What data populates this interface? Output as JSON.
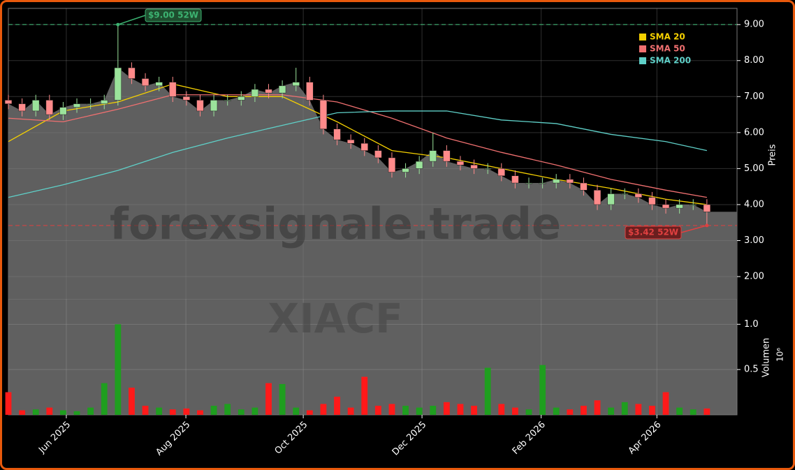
{
  "chart_data": {
    "type": "candlestick",
    "watermark": "forexsignale.trade",
    "ticker_watermark": "XIACF",
    "y_label": "Preis",
    "volume_label": "Volumen",
    "volume_offset_label": "10⁶",
    "xlim": [
      0,
      53.2
    ],
    "xticks": [
      {
        "value": 4.23,
        "label": "Jun 2025"
      },
      {
        "value": 12.96,
        "label": "Aug 2025"
      },
      {
        "value": 21.53,
        "label": "Oct 2025"
      },
      {
        "value": 30.2,
        "label": "Dec 2025"
      },
      {
        "value": 38.9,
        "label": "Feb 2026"
      },
      {
        "value": 47.35,
        "label": "Apr 2026"
      }
    ],
    "ylim": [
      1.38,
      9.45
    ],
    "yticks": [
      {
        "value": 2,
        "label": "2.00"
      },
      {
        "value": 3,
        "label": "3.00"
      },
      {
        "value": 4,
        "label": "4.00"
      },
      {
        "value": 5,
        "label": "5.00"
      },
      {
        "value": 6,
        "label": "6.00"
      },
      {
        "value": 7,
        "label": "7.00"
      },
      {
        "value": 8,
        "label": "8.00"
      },
      {
        "value": 9,
        "label": "9.00"
      }
    ],
    "volume_ylim": [
      0,
      1.28
    ],
    "volume_yticks": [
      0.5,
      {
        "value": 1,
        "label": "1.0"
      }
    ],
    "grid": true,
    "up_color": "#9be39b",
    "down_color": "#ff8a8a",
    "volume_up_color": "#1f9e1f",
    "volume_down_color": "#ff1a1a",
    "open": [
      6.9,
      6.8,
      6.6,
      6.9,
      6.5,
      6.7,
      6.8,
      6.8,
      6.9,
      7.8,
      7.5,
      7.3,
      7.4,
      7.0,
      6.9,
      6.6,
      6.9,
      6.9,
      7.0,
      7.2,
      7.1,
      7.3,
      7.4,
      6.9,
      6.1,
      5.8,
      5.7,
      5.5,
      5.3,
      4.9,
      5.0,
      5.2,
      5.5,
      5.2,
      5.1,
      5.0,
      5.0,
      4.8,
      4.6,
      4.6,
      4.6,
      4.7,
      4.6,
      4.4,
      4.0,
      4.3,
      4.3,
      4.2,
      4.0,
      3.9,
      4.0,
      4.0
    ],
    "high": [
      7.05,
      6.95,
      7.05,
      7.05,
      6.85,
      6.95,
      6.95,
      7.05,
      9.0,
      7.95,
      7.65,
      7.55,
      7.55,
      7.15,
      7.05,
      7.05,
      7.05,
      7.15,
      7.35,
      7.35,
      7.45,
      7.8,
      7.55,
      7.05,
      6.25,
      5.95,
      5.85,
      5.65,
      5.45,
      5.15,
      5.35,
      6.0,
      5.65,
      5.35,
      5.25,
      5.15,
      5.15,
      4.95,
      4.75,
      4.75,
      4.85,
      4.85,
      4.75,
      4.55,
      4.45,
      4.45,
      4.45,
      4.35,
      4.15,
      4.15,
      4.15,
      4.15
    ],
    "low": [
      6.65,
      6.45,
      6.45,
      6.35,
      6.35,
      6.55,
      6.65,
      6.65,
      6.75,
      7.35,
      7.15,
      7.15,
      6.85,
      6.75,
      6.45,
      6.45,
      6.75,
      6.75,
      6.85,
      6.95,
      6.95,
      7.15,
      6.75,
      5.95,
      5.65,
      5.55,
      5.35,
      5.15,
      4.75,
      4.75,
      4.85,
      5.05,
      5.05,
      4.95,
      4.85,
      4.85,
      4.65,
      4.45,
      4.45,
      4.45,
      4.45,
      4.45,
      4.25,
      3.85,
      3.85,
      4.15,
      4.05,
      3.85,
      3.75,
      3.75,
      3.85,
      3.42
    ],
    "close": [
      6.8,
      6.6,
      6.9,
      6.5,
      6.7,
      6.8,
      6.8,
      6.9,
      7.8,
      7.5,
      7.3,
      7.4,
      7.0,
      6.9,
      6.6,
      6.9,
      6.9,
      7.0,
      7.2,
      7.1,
      7.3,
      7.4,
      6.9,
      6.1,
      5.8,
      5.7,
      5.5,
      5.3,
      4.9,
      5.0,
      5.2,
      5.5,
      5.2,
      5.1,
      5.0,
      5.0,
      4.8,
      4.6,
      4.6,
      4.6,
      4.7,
      4.6,
      4.4,
      4.0,
      4.3,
      4.3,
      4.2,
      4.0,
      3.9,
      4.0,
      4.0,
      3.8
    ],
    "volume": [
      0.25,
      0.05,
      0.06,
      0.08,
      0.05,
      0.04,
      0.08,
      0.35,
      1.0,
      0.3,
      0.1,
      0.08,
      0.06,
      0.07,
      0.05,
      0.1,
      0.12,
      0.06,
      0.08,
      0.35,
      0.34,
      0.08,
      0.05,
      0.12,
      0.2,
      0.08,
      0.42,
      0.1,
      0.12,
      0.1,
      0.08,
      0.1,
      0.14,
      0.12,
      0.1,
      0.52,
      0.12,
      0.08,
      0.06,
      0.55,
      0.08,
      0.06,
      0.1,
      0.16,
      0.08,
      0.14,
      0.12,
      0.1,
      0.25,
      0.08,
      0.06,
      0.07
    ],
    "series": [
      {
        "name": "SMA 20",
        "color": "#f5d000",
        "x": [
          0,
          4,
          8,
          12,
          16,
          20,
          24,
          28,
          32,
          36,
          40,
          44,
          48,
          51
        ],
        "values": [
          5.75,
          6.6,
          6.85,
          7.35,
          7.0,
          7.0,
          6.3,
          5.5,
          5.3,
          5.0,
          4.7,
          4.45,
          4.15,
          4.0
        ]
      },
      {
        "name": "SMA 50",
        "color": "#f07070",
        "x": [
          0,
          4,
          8,
          12,
          16,
          20,
          24,
          28,
          32,
          36,
          40,
          44,
          48,
          51
        ],
        "values": [
          6.4,
          6.3,
          6.65,
          7.05,
          7.05,
          7.05,
          6.85,
          6.4,
          5.85,
          5.45,
          5.1,
          4.7,
          4.4,
          4.2
        ]
      },
      {
        "name": "SMA 200",
        "color": "#5fd0c8",
        "x": [
          0,
          4,
          8,
          12,
          16,
          20,
          24,
          28,
          32,
          36,
          40,
          44,
          48,
          51
        ],
        "values": [
          4.2,
          4.55,
          4.95,
          5.45,
          5.85,
          6.2,
          6.55,
          6.6,
          6.6,
          6.35,
          6.25,
          5.95,
          5.75,
          5.5
        ]
      }
    ],
    "high_52w": {
      "value": 9.0,
      "label": "$9.00 52W",
      "color": "#3cb371"
    },
    "low_52w": {
      "value": 3.42,
      "label": "$3.42 52W",
      "color": "#e04040"
    },
    "legend": "upper right"
  }
}
